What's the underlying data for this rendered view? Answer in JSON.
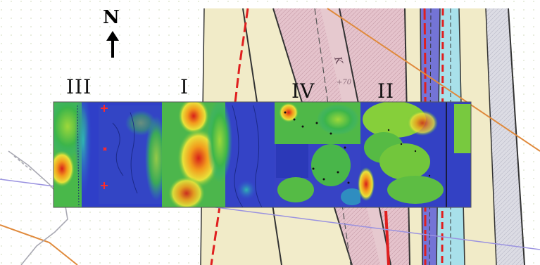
{
  "north": {
    "letter": "N",
    "icon": "north-arrow-icon"
  },
  "panels": [
    {
      "id": "III",
      "label": "III"
    },
    {
      "id": "I",
      "label": "I"
    },
    {
      "id": "IV",
      "label": "IV"
    },
    {
      "id": "II",
      "label": "II"
    }
  ],
  "annotations": {
    "formation_code": "K",
    "faint_text": "+70"
  },
  "colors": {
    "geology_pink": "#e2bcc6",
    "geology_pale": "#efe9c6",
    "geology_blue": "#6f6fd0",
    "geology_cyan": "#9fdce8",
    "geology_gray": "#d9d9e1",
    "fault_red": "#e02020",
    "contour_orange": "#e08a3c",
    "heatmap_low": "#2a3bd0",
    "heatmap_mid": "#3dbb3d",
    "heatmap_high": "#e02a10"
  }
}
